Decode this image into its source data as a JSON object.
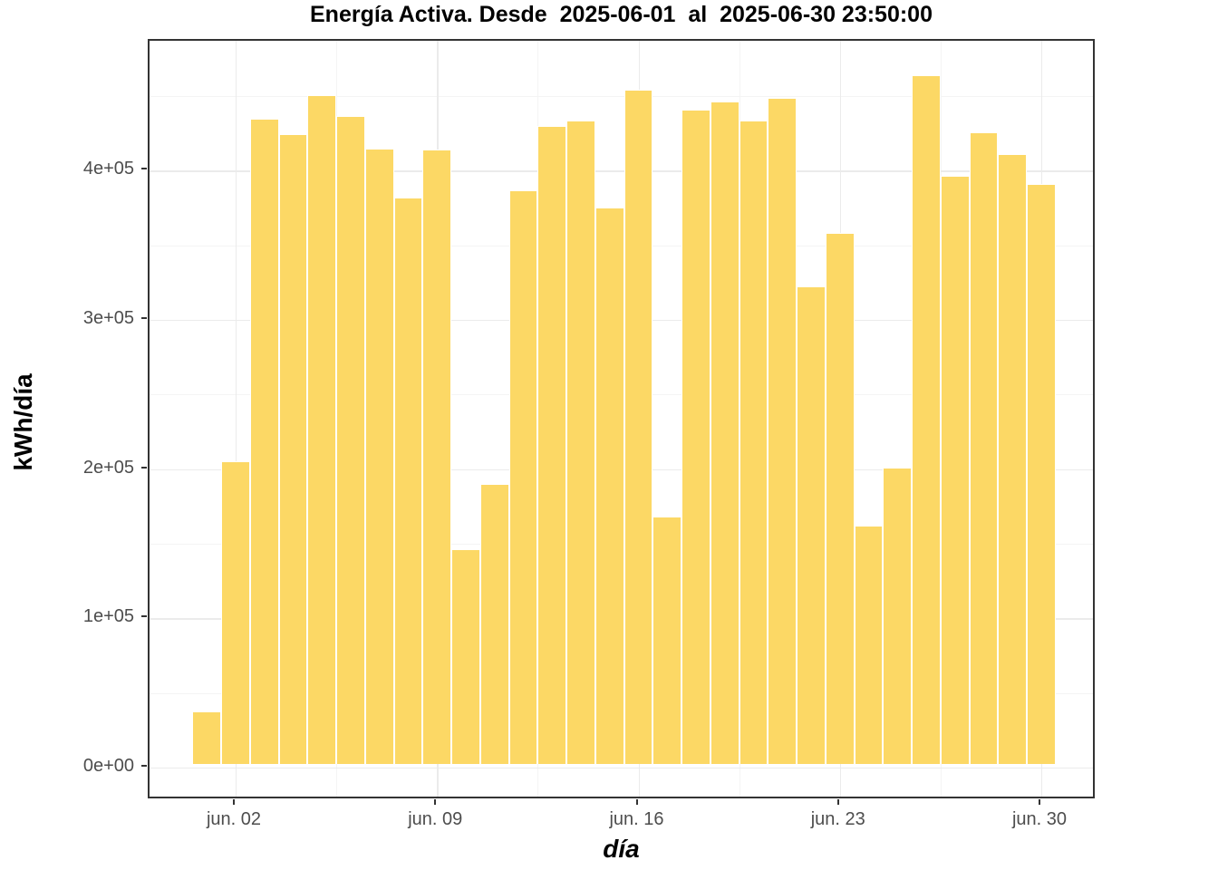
{
  "title": "Energía Activa. Desde  2025-06-01  al  2025-06-30 23:50:00",
  "chart_data": {
    "type": "bar",
    "title": "Energía Activa. Desde  2025-06-01  al  2025-06-30 23:50:00",
    "xlabel": "día",
    "ylabel": "kWh/día",
    "categories": [
      "2025-06-01",
      "2025-06-02",
      "2025-06-03",
      "2025-06-04",
      "2025-06-05",
      "2025-06-06",
      "2025-06-07",
      "2025-06-08",
      "2025-06-09",
      "2025-06-10",
      "2025-06-11",
      "2025-06-12",
      "2025-06-13",
      "2025-06-14",
      "2025-06-15",
      "2025-06-16",
      "2025-06-17",
      "2025-06-18",
      "2025-06-19",
      "2025-06-20",
      "2025-06-21",
      "2025-06-22",
      "2025-06-23",
      "2025-06-24",
      "2025-06-25",
      "2025-06-26",
      "2025-06-27",
      "2025-06-28",
      "2025-06-29",
      "2025-06-30"
    ],
    "values": [
      35400,
      203000,
      432200,
      421800,
      448100,
      434500,
      412100,
      379400,
      411500,
      143700,
      187600,
      384400,
      427300,
      430900,
      372700,
      451700,
      165500,
      438700,
      443700,
      431000,
      446100,
      320300,
      355700,
      159500,
      198700,
      461300,
      394000,
      423200,
      408700,
      388900
    ],
    "x_ticks": [
      {
        "day": 2,
        "label": "jun. 02"
      },
      {
        "day": 9,
        "label": "jun. 09"
      },
      {
        "day": 16,
        "label": "jun. 16"
      },
      {
        "day": 23,
        "label": "jun. 23"
      },
      {
        "day": 30,
        "label": "jun. 30"
      }
    ],
    "y_ticks": [
      {
        "value": 0,
        "label": "0e+00"
      },
      {
        "value": 100000,
        "label": "1e+05"
      },
      {
        "value": 200000,
        "label": "2e+05"
      },
      {
        "value": 300000,
        "label": "3e+05"
      },
      {
        "value": 400000,
        "label": "4e+05"
      }
    ],
    "y_minor_values": [
      50000,
      150000,
      250000,
      350000,
      450000
    ],
    "x_minor_days": [
      5.5,
      12.5,
      19.5,
      26.5
    ],
    "ylim": [
      0,
      470000
    ],
    "grid": "major+minor",
    "legend": false,
    "colors": {
      "bar": "#FCD865",
      "grid_major": "#EBEBEB",
      "grid_minor": "#F4F4F4",
      "axis_text": "#4D4D4D",
      "panel_border": "#333333",
      "title_text": "#000000"
    }
  }
}
